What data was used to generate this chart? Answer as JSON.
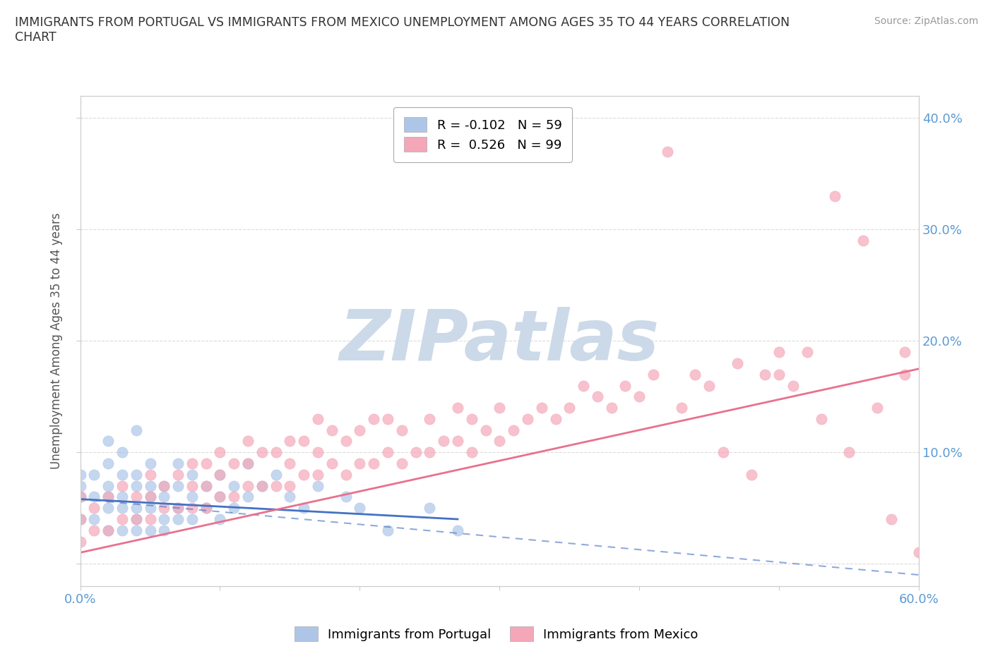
{
  "title": "IMMIGRANTS FROM PORTUGAL VS IMMIGRANTS FROM MEXICO UNEMPLOYMENT AMONG AGES 35 TO 44 YEARS CORRELATION\nCHART",
  "source_text": "Source: ZipAtlas.com",
  "ylabel": "Unemployment Among Ages 35 to 44 years",
  "xlim": [
    0.0,
    0.6
  ],
  "ylim": [
    -0.02,
    0.42
  ],
  "ytick_positions": [
    0.0,
    0.1,
    0.2,
    0.3,
    0.4
  ],
  "ytick_labels": [
    "",
    "10.0%",
    "20.0%",
    "30.0%",
    "40.0%"
  ],
  "xtick_positions": [
    0.0,
    0.1,
    0.2,
    0.3,
    0.4,
    0.5,
    0.6
  ],
  "xticklabels": [
    "0.0%",
    "",
    "",
    "",
    "",
    "",
    "60.0%"
  ],
  "tick_color": "#5b9bd5",
  "portugal_color": "#adc6e8",
  "mexico_color": "#f4a7b9",
  "portugal_trend_color": "#4472c4",
  "mexico_trend_color": "#e8718d",
  "watermark_text": "ZIPatlas",
  "watermark_color": "#ccd9e8",
  "legend_label_portugal": "R = -0.102   N = 59",
  "legend_label_mexico": "R =  0.526   N = 99",
  "background_color": "#ffffff",
  "grid_color": "#d8d8d8",
  "portugal_scatter_x": [
    0.0,
    0.0,
    0.0,
    0.0,
    0.01,
    0.01,
    0.01,
    0.02,
    0.02,
    0.02,
    0.02,
    0.02,
    0.02,
    0.03,
    0.03,
    0.03,
    0.03,
    0.03,
    0.04,
    0.04,
    0.04,
    0.04,
    0.04,
    0.04,
    0.05,
    0.05,
    0.05,
    0.05,
    0.05,
    0.06,
    0.06,
    0.06,
    0.06,
    0.07,
    0.07,
    0.07,
    0.07,
    0.08,
    0.08,
    0.08,
    0.09,
    0.09,
    0.1,
    0.1,
    0.1,
    0.11,
    0.11,
    0.12,
    0.12,
    0.13,
    0.14,
    0.15,
    0.16,
    0.17,
    0.19,
    0.2,
    0.22,
    0.25,
    0.27
  ],
  "portugal_scatter_y": [
    0.04,
    0.06,
    0.07,
    0.08,
    0.04,
    0.06,
    0.08,
    0.03,
    0.05,
    0.06,
    0.07,
    0.09,
    0.11,
    0.03,
    0.05,
    0.06,
    0.08,
    0.1,
    0.03,
    0.04,
    0.05,
    0.07,
    0.08,
    0.12,
    0.03,
    0.05,
    0.06,
    0.07,
    0.09,
    0.03,
    0.04,
    0.06,
    0.07,
    0.04,
    0.05,
    0.07,
    0.09,
    0.04,
    0.06,
    0.08,
    0.05,
    0.07,
    0.04,
    0.06,
    0.08,
    0.05,
    0.07,
    0.06,
    0.09,
    0.07,
    0.08,
    0.06,
    0.05,
    0.07,
    0.06,
    0.05,
    0.03,
    0.05,
    0.03
  ],
  "mexico_scatter_x": [
    0.0,
    0.0,
    0.0,
    0.01,
    0.01,
    0.02,
    0.02,
    0.03,
    0.03,
    0.04,
    0.04,
    0.05,
    0.05,
    0.05,
    0.06,
    0.06,
    0.07,
    0.07,
    0.08,
    0.08,
    0.08,
    0.09,
    0.09,
    0.09,
    0.1,
    0.1,
    0.1,
    0.11,
    0.11,
    0.12,
    0.12,
    0.12,
    0.13,
    0.13,
    0.14,
    0.14,
    0.15,
    0.15,
    0.15,
    0.16,
    0.16,
    0.17,
    0.17,
    0.17,
    0.18,
    0.18,
    0.19,
    0.19,
    0.2,
    0.2,
    0.21,
    0.21,
    0.22,
    0.22,
    0.23,
    0.23,
    0.24,
    0.25,
    0.25,
    0.26,
    0.27,
    0.27,
    0.28,
    0.28,
    0.29,
    0.3,
    0.3,
    0.31,
    0.32,
    0.33,
    0.34,
    0.35,
    0.36,
    0.37,
    0.38,
    0.39,
    0.4,
    0.41,
    0.42,
    0.43,
    0.44,
    0.45,
    0.46,
    0.47,
    0.48,
    0.49,
    0.5,
    0.5,
    0.51,
    0.52,
    0.53,
    0.54,
    0.55,
    0.56,
    0.57,
    0.58,
    0.59,
    0.59,
    0.6
  ],
  "mexico_scatter_y": [
    0.02,
    0.04,
    0.06,
    0.03,
    0.05,
    0.03,
    0.06,
    0.04,
    0.07,
    0.04,
    0.06,
    0.04,
    0.06,
    0.08,
    0.05,
    0.07,
    0.05,
    0.08,
    0.05,
    0.07,
    0.09,
    0.05,
    0.07,
    0.09,
    0.06,
    0.08,
    0.1,
    0.06,
    0.09,
    0.07,
    0.09,
    0.11,
    0.07,
    0.1,
    0.07,
    0.1,
    0.07,
    0.09,
    0.11,
    0.08,
    0.11,
    0.08,
    0.1,
    0.13,
    0.09,
    0.12,
    0.08,
    0.11,
    0.09,
    0.12,
    0.09,
    0.13,
    0.1,
    0.13,
    0.09,
    0.12,
    0.1,
    0.1,
    0.13,
    0.11,
    0.11,
    0.14,
    0.1,
    0.13,
    0.12,
    0.11,
    0.14,
    0.12,
    0.13,
    0.14,
    0.13,
    0.14,
    0.16,
    0.15,
    0.14,
    0.16,
    0.15,
    0.17,
    0.37,
    0.14,
    0.17,
    0.16,
    0.1,
    0.18,
    0.08,
    0.17,
    0.17,
    0.19,
    0.16,
    0.19,
    0.13,
    0.33,
    0.1,
    0.29,
    0.14,
    0.04,
    0.17,
    0.19,
    0.01
  ]
}
